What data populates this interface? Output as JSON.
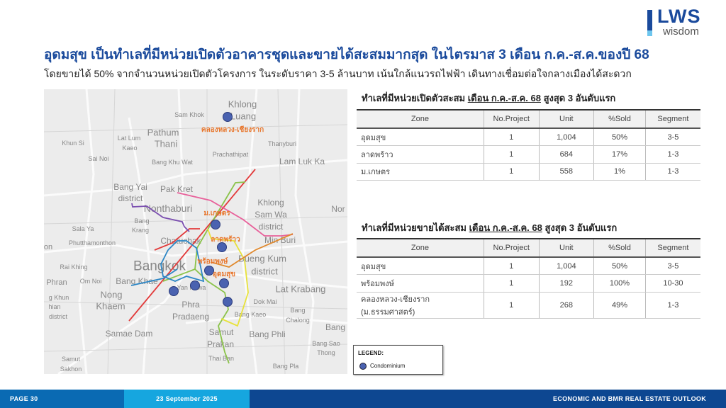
{
  "logo": {
    "brand": "LWS",
    "sub": "wisdom",
    "colors": {
      "primary": "#1a4a9c",
      "accent": "#6ec6ee"
    }
  },
  "header": {
    "title": "อุดมสุข  เป็นทำเลที่มีหน่วยเปิดตัวอาคารชุดและขายได้สะสมมากสุด ในไตรมาส 3 เดือน ก.ค.-ส.ค.ของปี 68",
    "subtitle": "โดยขายได้ 50% จากจำนวนหน่วยเปิดตัวโครงการ ในระดับราคา 3-5 ล้านบาท เน้นใกล้แนวรถไฟฟ้า เดินทางเชื่อมต่อใจกลางเมืองได้สะดวก"
  },
  "map": {
    "places": [
      "Khlong",
      "Luang",
      "Sam Khok",
      "Pathum",
      "Thani",
      "Thanyburi",
      "Khun Si",
      "Lat Lum",
      "Kaeo",
      "Sai Noi",
      "Prachathipat",
      "Bang Khu Wat",
      "Lam Luk Ka",
      "Bang Yai",
      "district",
      "Pak Kret",
      "Khlong",
      "Sam Wa",
      "district",
      "Nor",
      "Nonthaburi",
      "Bang",
      "Krang",
      "Sala Ya",
      "Phutthamonthon",
      "Chatuchak",
      "Min Buri",
      "Rai Khing",
      "Bangkok",
      "Bueng Kum",
      "district",
      "Phran",
      "Om Noi",
      "Bang Khae",
      "Nong",
      "Khaem",
      "Lat Krabang",
      "Yan Nawa",
      "Phra",
      "Pradaeng",
      "Dok Mai",
      "Bang",
      "Chalong",
      "Bang Kaeo",
      "Samae Dam",
      "Samut",
      "Prakan",
      "Bang Phli",
      "Bang",
      "Bang Sao",
      "Thong",
      "Thai Ban",
      "Samut",
      "Sakhon",
      "Bang Pla",
      "g Khun",
      "hian",
      "district",
      "on"
    ],
    "zone_labels": [
      "คลองหลวง-เชียงราก",
      "ม.เกษตร",
      "ลาดพร้าว",
      "พร้อมพงษ์",
      "อุดมสุข"
    ],
    "marker_color": "#4a62b0",
    "label_color": "#e8762c"
  },
  "table1": {
    "title_pre": "ทำเลที่มีหน่วยเปิดตัวสะสม ",
    "title_u": "เดือน ก.ค.-ส.ค. 68",
    "title_post": " สูงสุด 3 อันดับแรก",
    "headers": [
      "Zone",
      "No.Project",
      "Unit",
      "%Sold",
      "Segment"
    ],
    "rows": [
      [
        "อุดมสุข",
        "1",
        "1,004",
        "50%",
        "3-5"
      ],
      [
        "ลาดพร้าว",
        "1",
        "684",
        "17%",
        "1-3"
      ],
      [
        "ม.เกษตร",
        "1",
        "558",
        "1%",
        "1-3"
      ]
    ]
  },
  "table2": {
    "title_pre": "ทำเลที่มีหน่วยขายได้สะสม ",
    "title_u": "เดือน ก.ค.-ส.ค. 68",
    "title_post": " สูงสุด 3 อันดับแรก",
    "headers": [
      "Zone",
      "No.Project",
      "Unit",
      "%Sold",
      "Segment"
    ],
    "rows": [
      [
        "อุดมสุข",
        "1",
        "1,004",
        "50%",
        "3-5"
      ],
      [
        "พร้อมพงษ์",
        "1",
        "192",
        "100%",
        "10-30"
      ],
      [
        "คลองหลวง-เชียงราก (ม.ธรรมศาสตร์)",
        "1",
        "268",
        "49%",
        "1-3"
      ]
    ]
  },
  "legend": {
    "title": "LEGEND:",
    "item": "Condominium"
  },
  "footer": {
    "page": "PAGE 30",
    "date": "23 September 2025",
    "report": "ECONOMIC AND BMR REAL ESTATE OUTLOOK"
  }
}
